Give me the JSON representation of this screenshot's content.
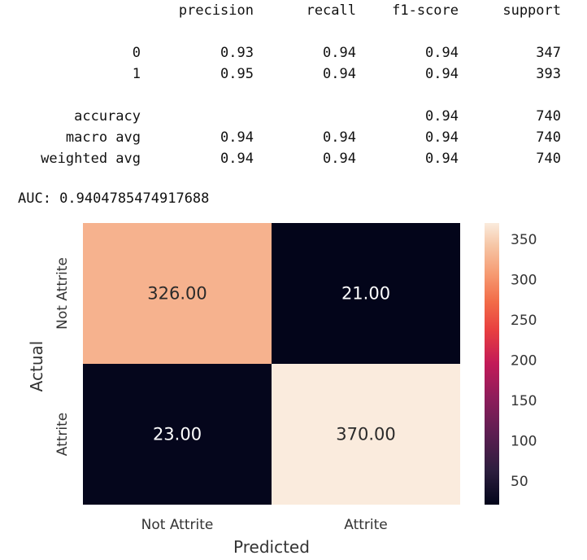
{
  "report": {
    "columns": [
      "precision",
      "recall",
      "f1-score",
      "support"
    ],
    "rows": [
      {
        "label": "0",
        "precision": "0.93",
        "recall": "0.94",
        "f1": "0.94",
        "support": "347"
      },
      {
        "label": "1",
        "precision": "0.95",
        "recall": "0.94",
        "f1": "0.94",
        "support": "393"
      },
      {
        "label": "accuracy",
        "precision": "",
        "recall": "",
        "f1": "0.94",
        "support": "740"
      },
      {
        "label": "macro avg",
        "precision": "0.94",
        "recall": "0.94",
        "f1": "0.94",
        "support": "740"
      },
      {
        "label": "weighted avg",
        "precision": "0.94",
        "recall": "0.94",
        "f1": "0.94",
        "support": "740"
      }
    ],
    "auc_text": "AUC: 0.9404785474917688"
  },
  "chart_data": {
    "type": "heatmap",
    "xlabel": "Predicted",
    "ylabel": "Actual",
    "x_categories": [
      "Not Attrite",
      "Attrite"
    ],
    "y_categories": [
      "Not Attrite",
      "Attrite"
    ],
    "values": [
      [
        326,
        21
      ],
      [
        23,
        370
      ]
    ],
    "annotations": [
      [
        "326.00",
        "21.00"
      ],
      [
        "23.00",
        "370.00"
      ]
    ],
    "colorbar": {
      "range": [
        21,
        370
      ],
      "ticks": [
        50,
        100,
        150,
        200,
        250,
        300,
        350
      ],
      "colormap": "rocket"
    },
    "grid": false
  }
}
